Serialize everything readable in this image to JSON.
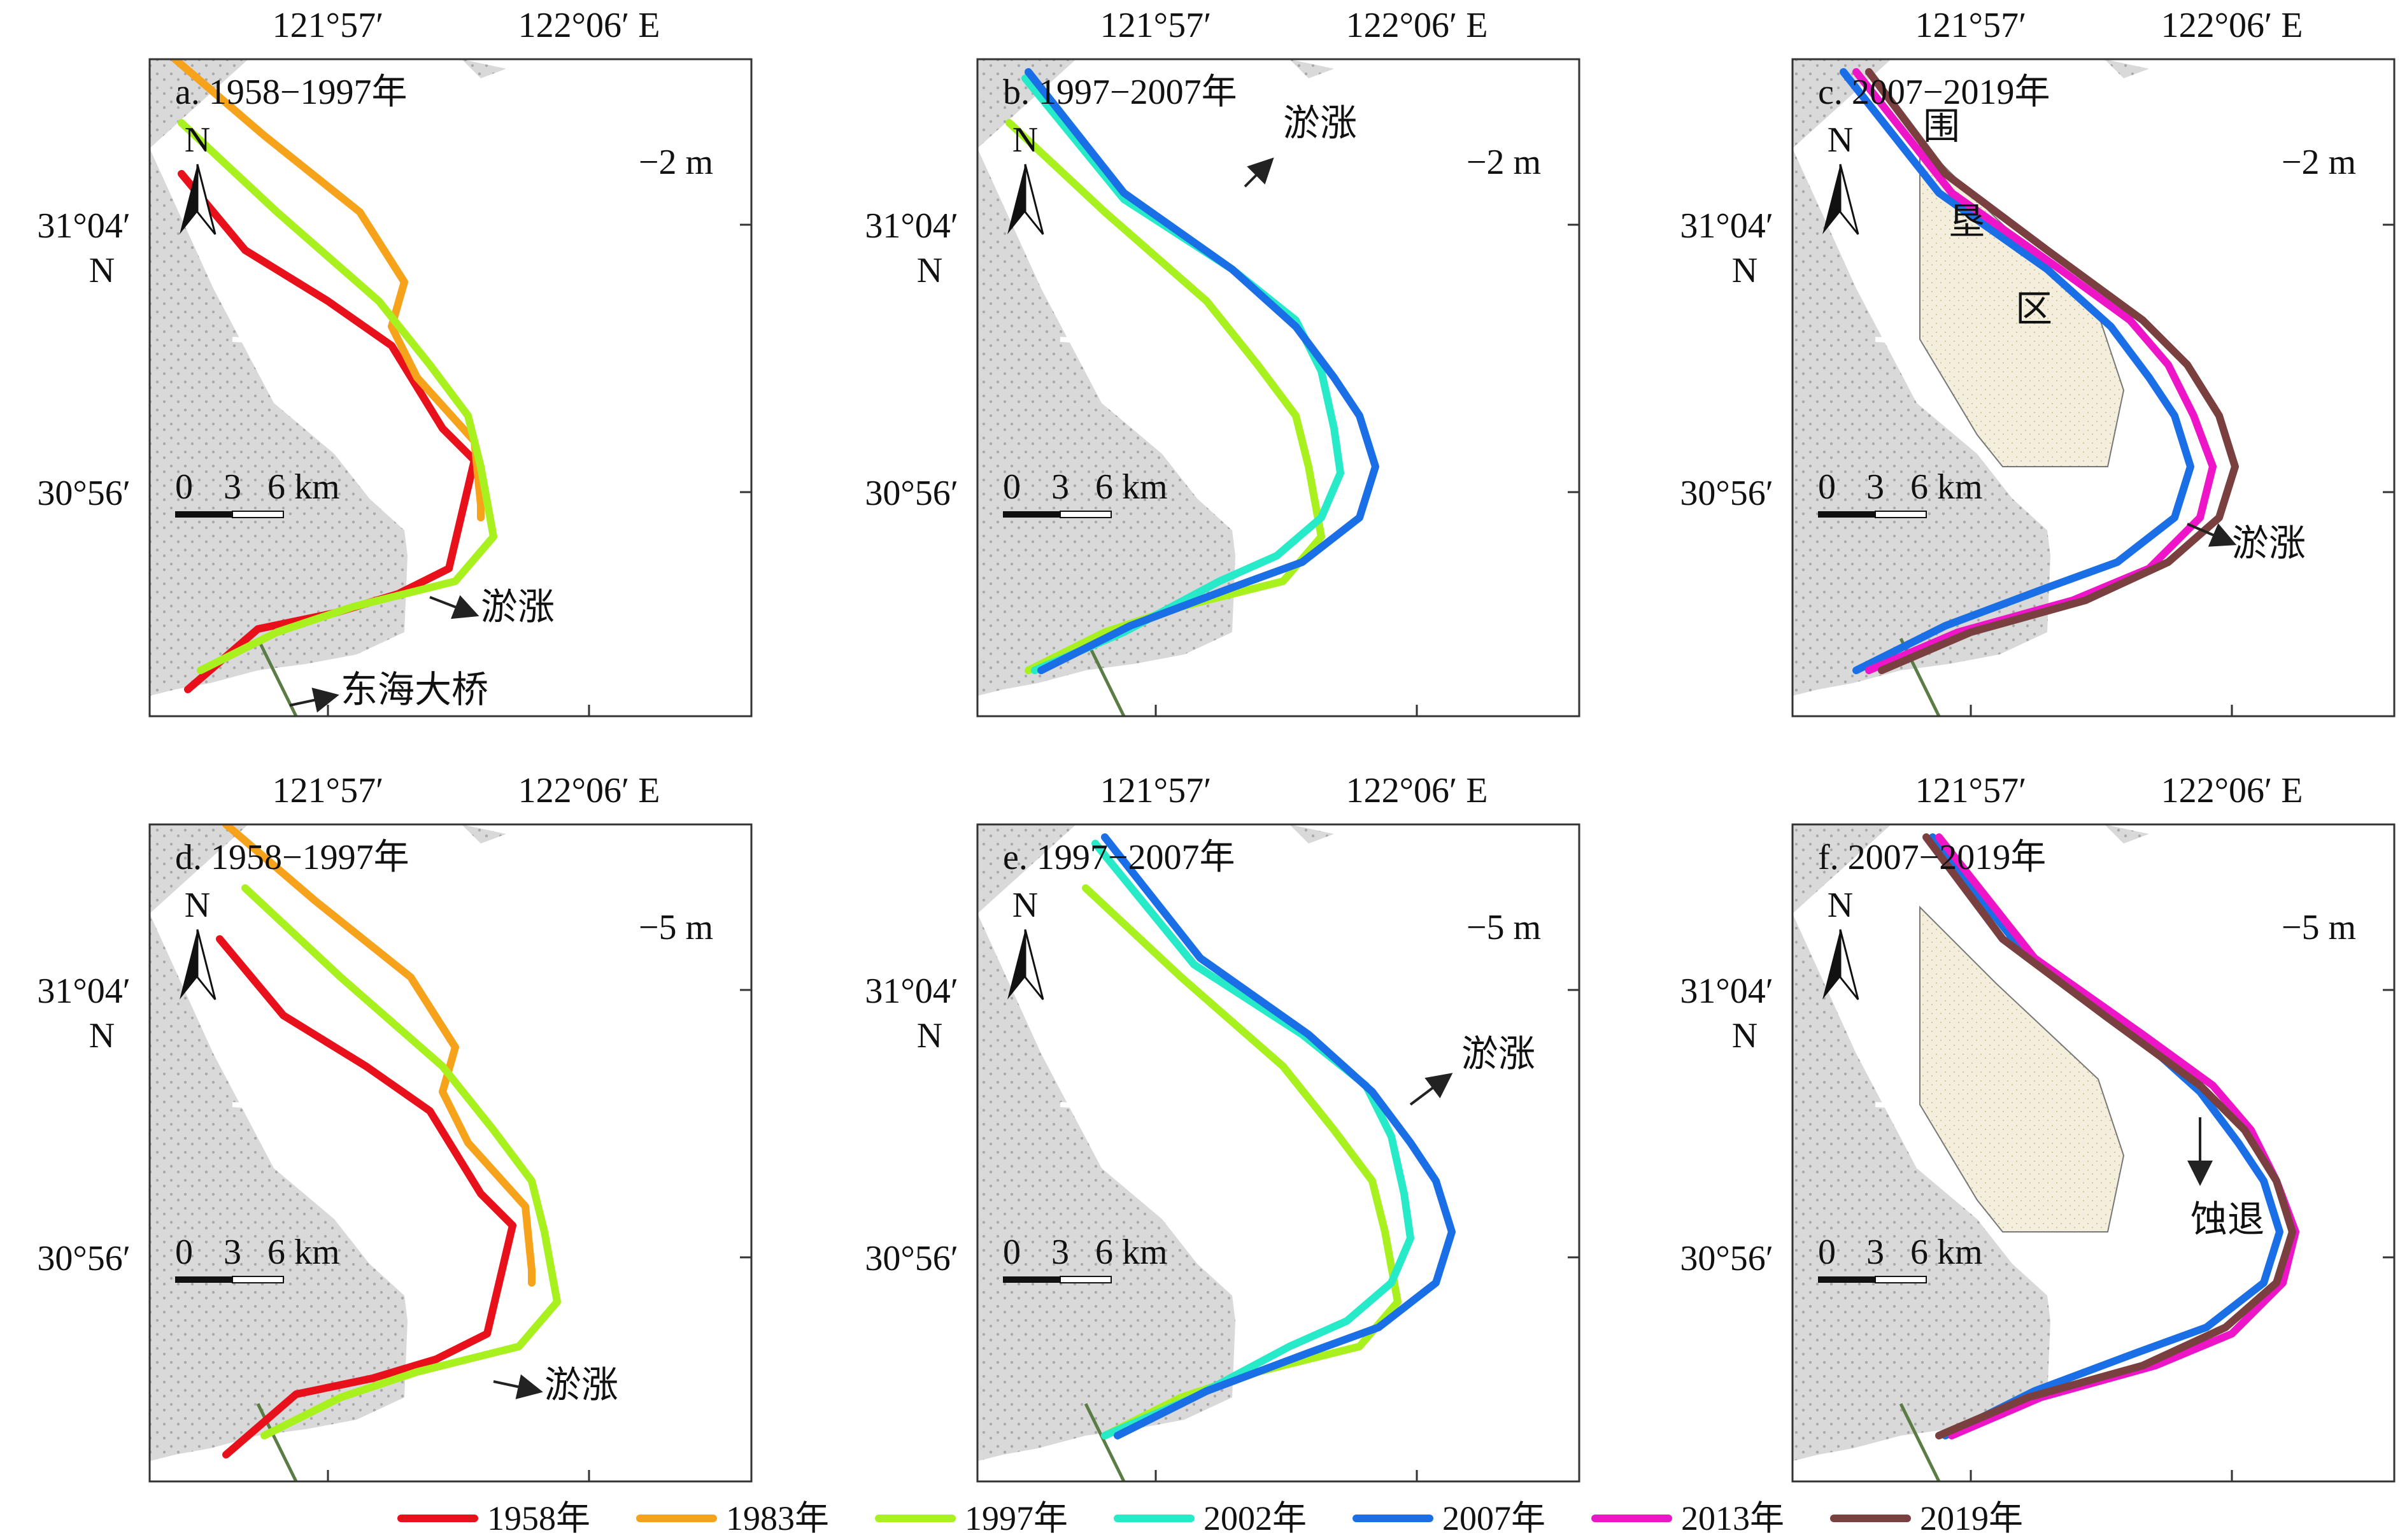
{
  "figure": {
    "panels": [
      {
        "id": "a",
        "title": "a. 1958−1997年",
        "depth": "−2 m",
        "notes": [
          {
            "text": "淤涨"
          },
          {
            "text": "东海大桥"
          }
        ],
        "lines": [
          "1958年",
          "1983年",
          "1997年"
        ],
        "reclaim": false
      },
      {
        "id": "b",
        "title": "b. 1997−2007年",
        "depth": "−2 m",
        "notes": [
          {
            "text": "淤涨"
          }
        ],
        "lines": [
          "1997年",
          "2002年",
          "2007年"
        ],
        "reclaim": false
      },
      {
        "id": "c",
        "title": "c. 2007−2019年",
        "depth": "−2 m",
        "notes": [
          {
            "text": "淤涨"
          },
          {
            "text": "围"
          },
          {
            "text": "垦"
          },
          {
            "text": "区"
          }
        ],
        "lines": [
          "2007年",
          "2013年",
          "2019年"
        ],
        "reclaim": true
      },
      {
        "id": "d",
        "title": "d. 1958−1997年",
        "depth": "−5 m",
        "notes": [
          {
            "text": "淤涨"
          }
        ],
        "lines": [
          "1958年",
          "1983年",
          "1997年"
        ],
        "reclaim": false
      },
      {
        "id": "e",
        "title": "e. 1997−2007年",
        "depth": "−5 m",
        "notes": [
          {
            "text": "淤涨"
          }
        ],
        "lines": [
          "1997年",
          "2002年",
          "2007年"
        ],
        "reclaim": false
      },
      {
        "id": "f",
        "title": "f. 2007−2019年",
        "depth": "−5 m",
        "notes": [
          {
            "text": "蚀退"
          }
        ],
        "lines": [
          "2007年",
          "2013年",
          "2019年"
        ],
        "reclaim": true
      }
    ],
    "axis_labels": {
      "lon1": "121°57′",
      "lon2": "122°06′ E",
      "lat1": "31°04′",
      "lat2": "30°56′",
      "lat_n": "N"
    },
    "north_label": "N",
    "scale_labels": {
      "zero": "0",
      "three": "3",
      "six": "6 km"
    },
    "legend": [
      {
        "label": "1958年",
        "color": "#e8111b"
      },
      {
        "label": "1983年",
        "color": "#f7a21b"
      },
      {
        "label": "1997年",
        "color": "#a8f01e"
      },
      {
        "label": "2002年",
        "color": "#27eac8"
      },
      {
        "label": "2007年",
        "color": "#1b6fe6"
      },
      {
        "label": "2013年",
        "color": "#ee15c8"
      },
      {
        "label": "2019年",
        "color": "#7a4040"
      }
    ],
    "colors": {
      "land": "#d9d9d9",
      "reclaim": "#f4efdc",
      "bridge": "#5b7d45",
      "frame": "#333333"
    }
  }
}
